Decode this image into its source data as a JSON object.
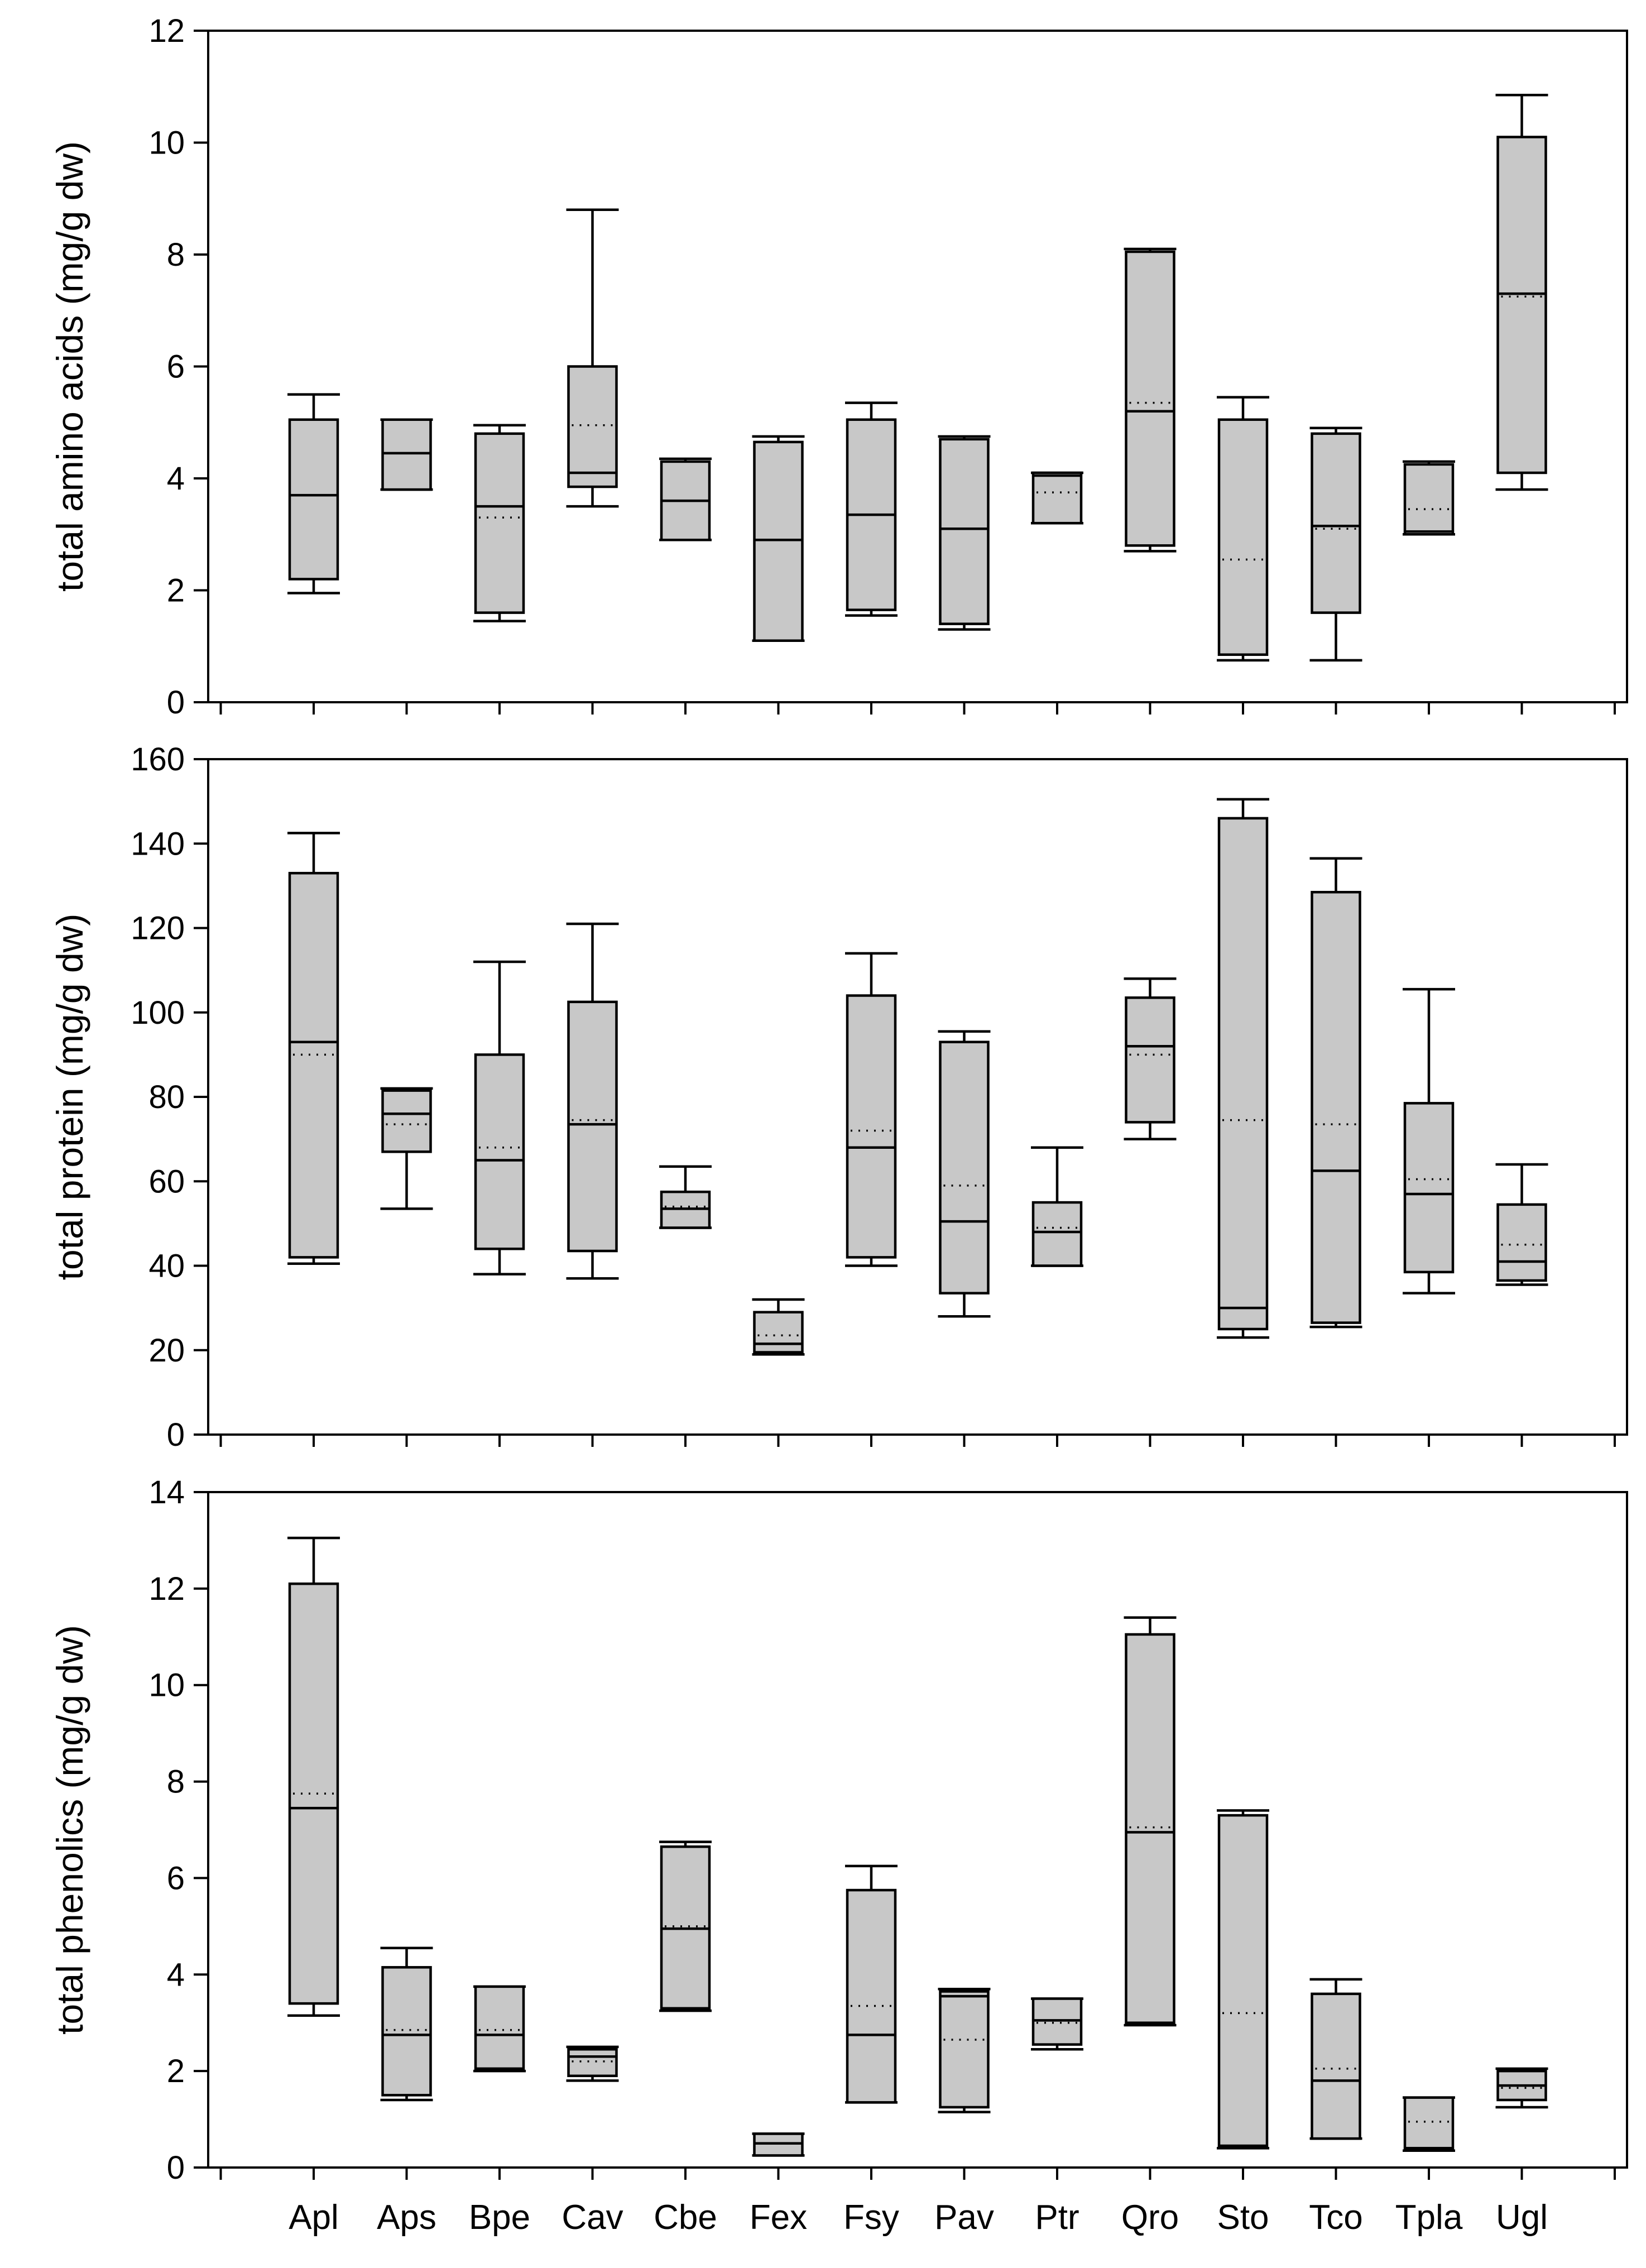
{
  "chart_data": [
    {
      "type": "box",
      "panel": "top",
      "ylabel": "total amino acids (mg/g dw)",
      "ylim": [
        0,
        12
      ],
      "yticks": [
        0,
        2,
        4,
        6,
        8,
        10,
        12
      ],
      "categories": [
        "Apl",
        "Aps",
        "Bpe",
        "Cav",
        "Cbe",
        "Fex",
        "Fsy",
        "Pav",
        "Ptr",
        "Qro",
        "Sto",
        "Tco",
        "Tpla",
        "Ugl"
      ],
      "boxes": [
        {
          "min": 1.95,
          "q1": 2.2,
          "median": 3.7,
          "mean": 3.7,
          "q3": 5.05,
          "max": 5.5
        },
        {
          "min": 3.8,
          "q1": 3.8,
          "median": 4.45,
          "mean": 4.45,
          "q3": 5.05,
          "max": 5.05
        },
        {
          "min": 1.45,
          "q1": 1.6,
          "median": 3.5,
          "mean": 3.3,
          "q3": 4.8,
          "max": 4.95
        },
        {
          "min": 3.5,
          "q1": 3.85,
          "median": 4.1,
          "mean": 4.95,
          "q3": 6.0,
          "max": 8.8
        },
        {
          "min": 2.9,
          "q1": 2.9,
          "median": 3.6,
          "mean": 3.6,
          "q3": 4.3,
          "max": 4.35
        },
        {
          "min": 1.1,
          "q1": 1.1,
          "median": 2.9,
          "mean": 2.9,
          "q3": 4.65,
          "max": 4.75
        },
        {
          "min": 1.55,
          "q1": 1.65,
          "median": 3.35,
          "mean": 3.35,
          "q3": 5.05,
          "max": 5.35
        },
        {
          "min": 1.3,
          "q1": 1.4,
          "median": 3.1,
          "mean": 3.1,
          "q3": 4.7,
          "max": 4.75
        },
        {
          "min": 3.2,
          "q1": 3.2,
          "median": 4.05,
          "mean": 3.75,
          "q3": 4.1,
          "max": 4.1
        },
        {
          "min": 2.7,
          "q1": 2.8,
          "median": 5.2,
          "mean": 5.35,
          "q3": 8.05,
          "max": 8.1
        },
        {
          "min": 0.75,
          "q1": 0.85,
          "median": 0.85,
          "mean": 2.55,
          "q3": 5.05,
          "max": 5.45
        },
        {
          "min": 0.75,
          "q1": 1.6,
          "median": 3.15,
          "mean": 3.1,
          "q3": 4.8,
          "max": 4.9
        },
        {
          "min": 3.0,
          "q1": 3.0,
          "median": 3.05,
          "mean": 3.45,
          "q3": 4.25,
          "max": 4.3
        },
        {
          "min": 3.8,
          "q1": 4.1,
          "median": 7.3,
          "mean": 7.25,
          "q3": 10.1,
          "max": 10.85
        }
      ]
    },
    {
      "type": "box",
      "panel": "middle",
      "ylabel": "total protein (mg/g dw)",
      "ylim": [
        0,
        160
      ],
      "yticks": [
        0,
        20,
        40,
        60,
        80,
        100,
        120,
        140,
        160
      ],
      "categories": [
        "Apl",
        "Aps",
        "Bpe",
        "Cav",
        "Cbe",
        "Fex",
        "Fsy",
        "Pav",
        "Ptr",
        "Qro",
        "Sto",
        "Tco",
        "Tpla",
        "Ugl"
      ],
      "boxes": [
        {
          "min": 40.5,
          "q1": 42,
          "median": 93,
          "mean": 90,
          "q3": 133,
          "max": 142.5
        },
        {
          "min": 53.5,
          "q1": 67,
          "median": 76,
          "mean": 73.5,
          "q3": 81.5,
          "max": 82
        },
        {
          "min": 38,
          "q1": 44,
          "median": 65,
          "mean": 68,
          "q3": 90,
          "max": 112
        },
        {
          "min": 37,
          "q1": 43.5,
          "median": 73.5,
          "mean": 74.5,
          "q3": 102.5,
          "max": 121
        },
        {
          "min": 49,
          "q1": 49,
          "median": 53.5,
          "mean": 54,
          "q3": 57.5,
          "max": 63.5
        },
        {
          "min": 19,
          "q1": 19.5,
          "median": 21.5,
          "mean": 23.5,
          "q3": 29,
          "max": 32
        },
        {
          "min": 40,
          "q1": 42,
          "median": 68,
          "mean": 72,
          "q3": 104,
          "max": 114
        },
        {
          "min": 28,
          "q1": 33.5,
          "median": 50.5,
          "mean": 59,
          "q3": 93,
          "max": 95.5
        },
        {
          "min": 40,
          "q1": 40,
          "median": 48,
          "mean": 49,
          "q3": 55,
          "max": 68
        },
        {
          "min": 70,
          "q1": 74,
          "median": 92,
          "mean": 90,
          "q3": 103.5,
          "max": 108
        },
        {
          "min": 23,
          "q1": 25,
          "median": 30,
          "mean": 74.5,
          "q3": 146,
          "max": 150.5
        },
        {
          "min": 25.5,
          "q1": 26.5,
          "median": 62.5,
          "mean": 73.5,
          "q3": 128.5,
          "max": 136.5
        },
        {
          "min": 33.5,
          "q1": 38.5,
          "median": 57,
          "mean": 60.5,
          "q3": 78.5,
          "max": 105.5
        },
        {
          "min": 35.5,
          "q1": 36.5,
          "median": 41,
          "mean": 45,
          "q3": 54.5,
          "max": 64
        }
      ]
    },
    {
      "type": "box",
      "panel": "bottom",
      "ylabel": "total phenolics (mg/g dw)",
      "ylim": [
        0,
        14
      ],
      "yticks": [
        0,
        2,
        4,
        6,
        8,
        10,
        12,
        14
      ],
      "xticklabels": [
        "Apl",
        "Aps",
        "Bpe",
        "Cav",
        "Cbe",
        "Fex",
        "Fsy",
        "Pav",
        "Ptr",
        "Qro",
        "Sto",
        "Tco",
        "Tpla",
        "Ugl"
      ],
      "categories": [
        "Apl",
        "Aps",
        "Bpe",
        "Cav",
        "Cbe",
        "Fex",
        "Fsy",
        "Pav",
        "Ptr",
        "Qro",
        "Sto",
        "Tco",
        "Tpla",
        "Ugl"
      ],
      "boxes": [
        {
          "min": 3.15,
          "q1": 3.4,
          "median": 7.45,
          "mean": 7.75,
          "q3": 12.1,
          "max": 13.05
        },
        {
          "min": 1.4,
          "q1": 1.5,
          "median": 2.75,
          "mean": 2.85,
          "q3": 4.15,
          "max": 4.55
        },
        {
          "min": 2.0,
          "q1": 2.05,
          "median": 2.75,
          "mean": 2.85,
          "q3": 3.75,
          "max": 3.75
        },
        {
          "min": 1.8,
          "q1": 1.9,
          "median": 2.3,
          "mean": 2.2,
          "q3": 2.45,
          "max": 2.5
        },
        {
          "min": 3.25,
          "q1": 3.3,
          "median": 4.95,
          "mean": 5.0,
          "q3": 6.65,
          "max": 6.75
        },
        {
          "min": 0.25,
          "q1": 0.25,
          "median": 0.5,
          "mean": 0.5,
          "q3": 0.7,
          "max": 0.7
        },
        {
          "min": 1.35,
          "q1": 1.35,
          "median": 2.75,
          "mean": 3.35,
          "q3": 5.75,
          "max": 6.25
        },
        {
          "min": 1.15,
          "q1": 1.25,
          "median": 3.55,
          "mean": 2.65,
          "q3": 3.65,
          "max": 3.7
        },
        {
          "min": 2.45,
          "q1": 2.55,
          "median": 3.05,
          "mean": 3.0,
          "q3": 3.5,
          "max": 3.5
        },
        {
          "min": 2.95,
          "q1": 3.0,
          "median": 6.95,
          "mean": 7.05,
          "q3": 11.05,
          "max": 11.4
        },
        {
          "min": 0.4,
          "q1": 0.45,
          "median": 0.45,
          "mean": 3.2,
          "q3": 7.3,
          "max": 7.4
        },
        {
          "min": 0.6,
          "q1": 0.6,
          "median": 1.8,
          "mean": 2.05,
          "q3": 3.6,
          "max": 3.9
        },
        {
          "min": 0.35,
          "q1": 0.4,
          "median": 0.4,
          "mean": 0.95,
          "q3": 1.45,
          "max": 1.45
        },
        {
          "min": 1.25,
          "q1": 1.4,
          "median": 1.7,
          "mean": 1.65,
          "q3": 2.0,
          "max": 2.05
        }
      ]
    }
  ]
}
